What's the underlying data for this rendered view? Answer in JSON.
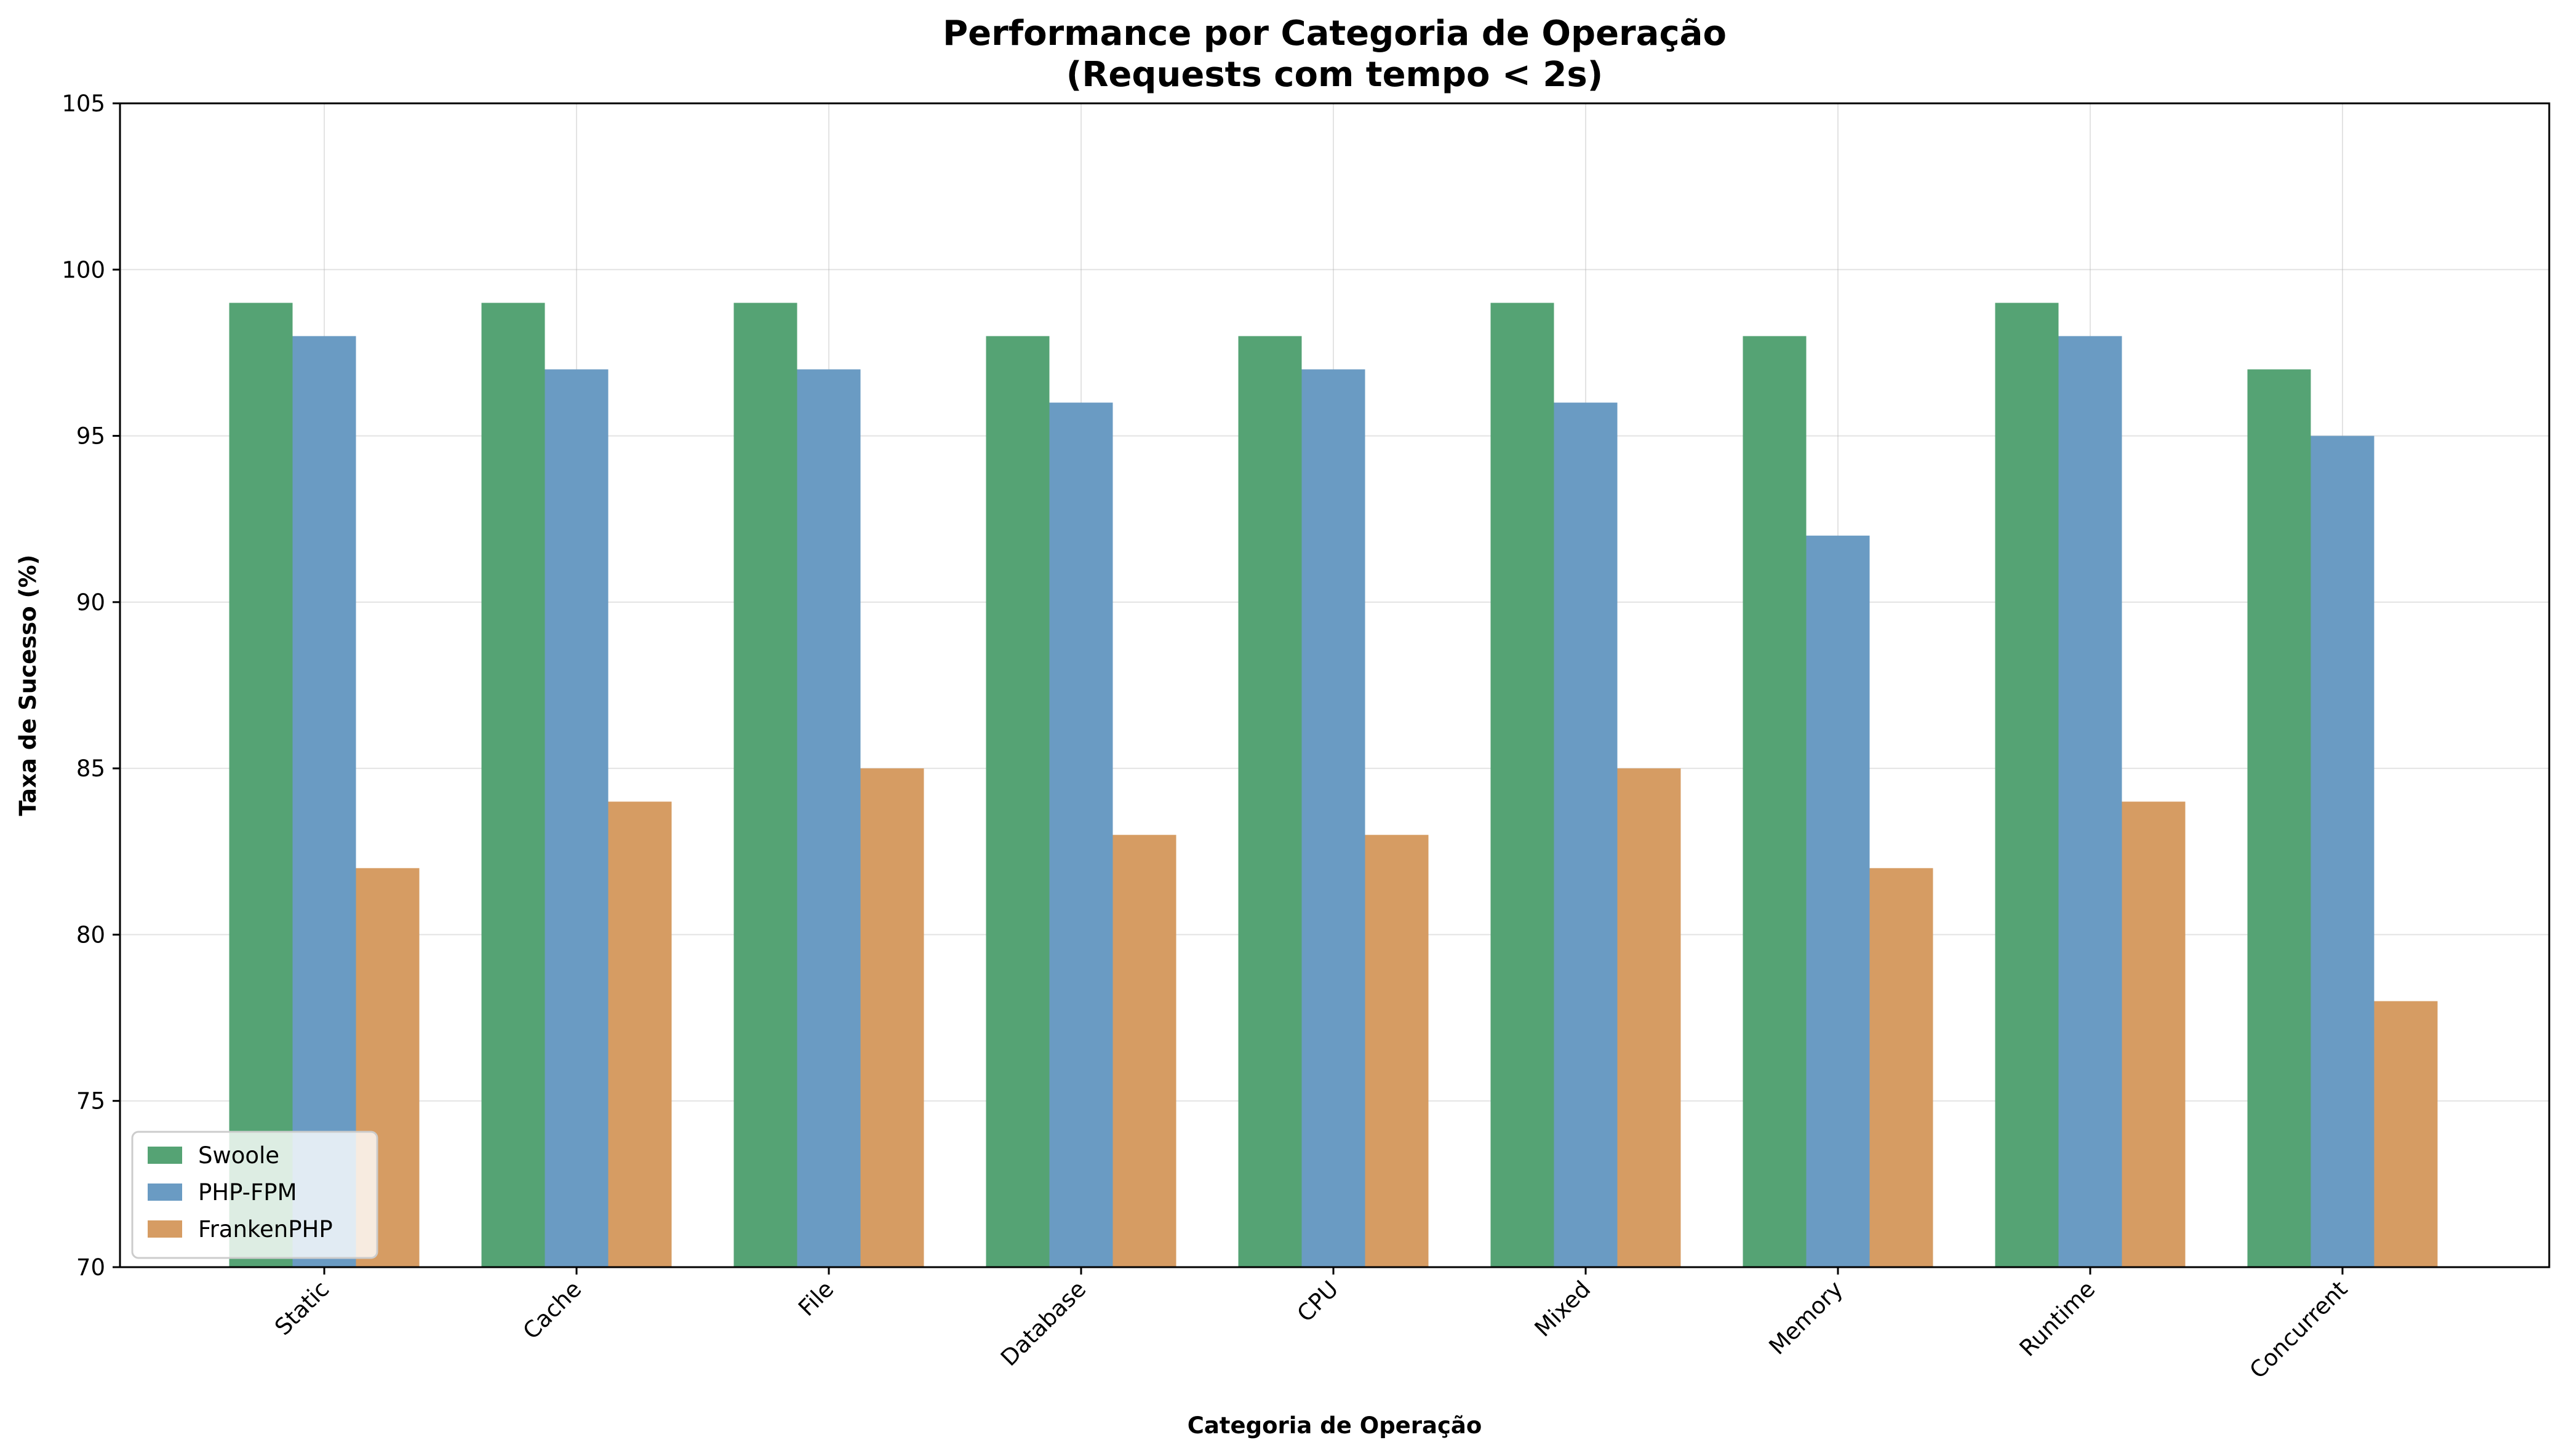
{
  "chart_data": {
    "type": "bar",
    "title_line1": "Performance por Categoria de Operação",
    "title_line2": "(Requests com tempo < 2s)",
    "xlabel": "Categoria de Operação",
    "ylabel": "Taxa de Sucesso (%)",
    "categories": [
      "Static",
      "Cache",
      "File",
      "Database",
      "CPU",
      "Mixed",
      "Memory",
      "Runtime",
      "Concurrent"
    ],
    "series": [
      {
        "name": "Swoole",
        "color": "#55a374",
        "values": [
          99,
          99,
          99,
          98,
          98,
          99,
          98,
          99,
          97
        ]
      },
      {
        "name": "PHP-FPM",
        "color": "#6a9bc3",
        "values": [
          98,
          97,
          97,
          96,
          97,
          96,
          92,
          98,
          95
        ]
      },
      {
        "name": "FrankenPHP",
        "color": "#d69c63",
        "values": [
          82,
          84,
          85,
          83,
          83,
          85,
          82,
          84,
          78
        ]
      }
    ],
    "ylim": [
      70,
      105
    ],
    "yticks": [
      70,
      75,
      80,
      85,
      90,
      95,
      100,
      105
    ],
    "grid": true,
    "legend_position": "lower-left"
  }
}
